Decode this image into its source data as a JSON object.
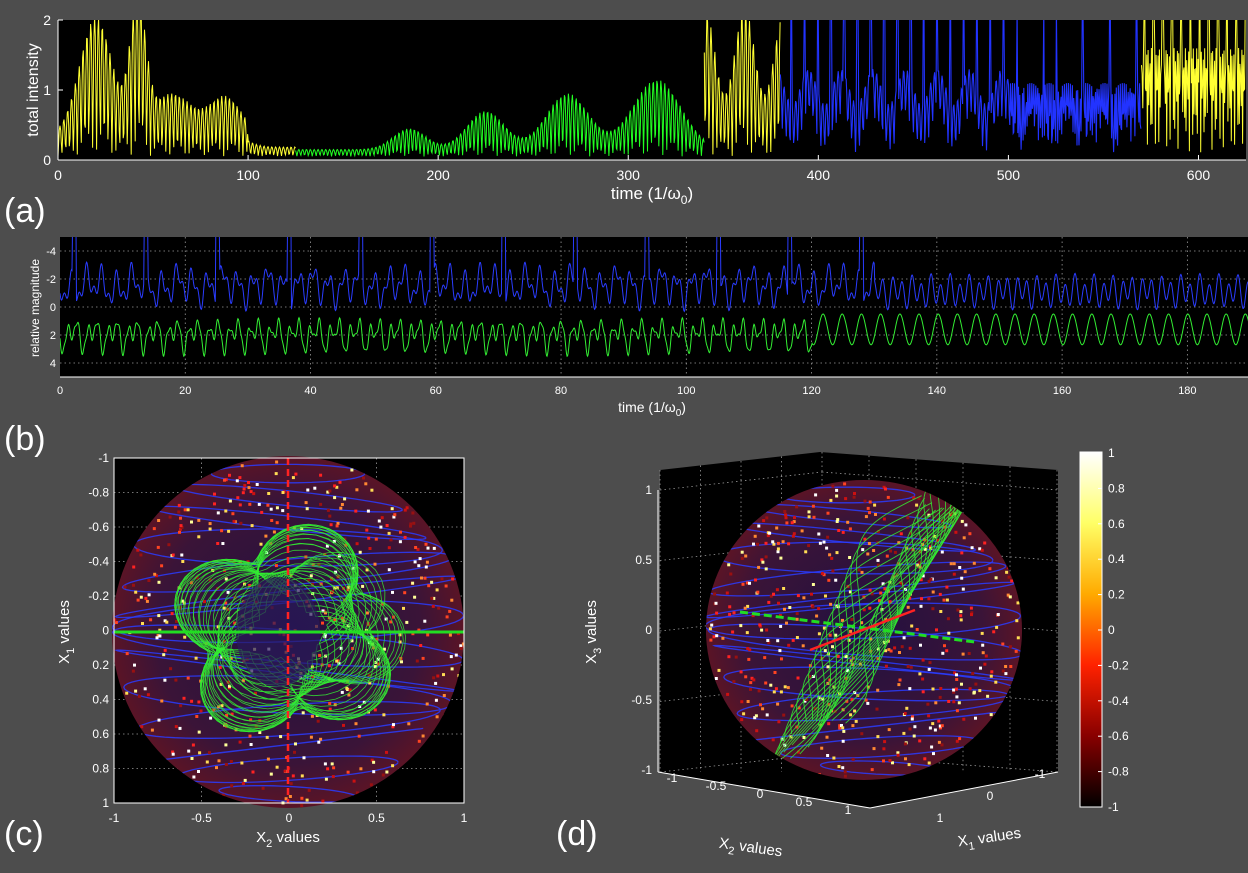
{
  "chart_data": [
    {
      "type": "line",
      "panel_label": "(a)",
      "xlabel": "time (1/ω0)",
      "xlabel_main": "time (1/ω",
      "xlabel_sub": "0",
      "xlabel_end": ")",
      "ylabel": "total intensity",
      "xlim": [
        0,
        625
      ],
      "ylim": [
        0,
        2
      ],
      "x_ticks": [
        "0",
        "100",
        "200",
        "300",
        "400",
        "500",
        "600"
      ],
      "y_ticks": [
        "0",
        "1",
        "2"
      ],
      "grid": false,
      "series": [
        {
          "color": "#ffff33",
          "x_range": [
            0,
            125
          ],
          "envelope_peak_times": [
            20,
            42,
            88
          ],
          "peak_values": [
            2,
            2,
            0.8
          ]
        },
        {
          "color": "#22ff22",
          "x_range": [
            125,
            340
          ],
          "envelope_peak_times": [
            185,
            225,
            268,
            315
          ],
          "peak_values": [
            0.4,
            0.7,
            0.95,
            1.3
          ]
        },
        {
          "color": "#ffff33",
          "x_range": [
            340,
            380
          ],
          "peak_values": [
            2
          ]
        },
        {
          "color": "#2233ff",
          "x_range": [
            380,
            570
          ],
          "peak_values": [
            2
          ]
        },
        {
          "color": "#ffff33",
          "x_range": [
            570,
            625
          ],
          "peak_values": [
            2
          ]
        }
      ]
    },
    {
      "type": "line",
      "panel_label": "(b)",
      "xlabel": "time (1/ω0)",
      "xlabel_main": "time (1/ω",
      "xlabel_sub": "0",
      "xlabel_end": ")",
      "ylabel": "relative magnitude",
      "xlim": [
        0,
        190
      ],
      "ylim": [
        -5,
        5
      ],
      "y_reversed": true,
      "x_ticks": [
        "0",
        "20",
        "40",
        "60",
        "80",
        "100",
        "120",
        "140",
        "160",
        "180"
      ],
      "y_ticks": [
        "-4",
        "-2",
        "0",
        "2",
        "4"
      ],
      "grid": true,
      "series": [
        {
          "color": "#2a3cff",
          "baseline": -1.5,
          "amplitude": 1.3
        },
        {
          "color": "#33ee33",
          "baseline": 2,
          "amplitude": 1.2
        }
      ]
    },
    {
      "type": "scatter",
      "panel_label": "(c)",
      "xlabel": "X2 values",
      "xlabel_main": "X",
      "xlabel_sub": "2",
      "xlabel_end": " values",
      "ylabel": "X1 values",
      "ylabel_main": "X",
      "ylabel_sub": "1",
      "ylabel_end": " values",
      "xlim": [
        -1,
        1
      ],
      "ylim": [
        -1,
        1
      ],
      "y_reversed": true,
      "x_ticks": [
        "-1",
        "-0.5",
        "0",
        "0.5",
        "1"
      ],
      "y_ticks": [
        "-1",
        "-0.8",
        "-0.6",
        "-0.4",
        "-0.2",
        "0",
        "0.2",
        "0.4",
        "0.6",
        "0.8",
        "1"
      ],
      "grid": true,
      "sphere_projection": "top view"
    },
    {
      "type": "scatter",
      "panel_label": "(d)",
      "xlabel": "X1 values",
      "xlabel_main": "X",
      "xlabel_sub": "1",
      "xlabel_end": " values",
      "ylabel": "X2 values",
      "ylabel_main": "X",
      "ylabel_sub": "2",
      "ylabel_end": " values",
      "zlabel": "X3 values",
      "zlabel_main": "X",
      "zlabel_sub": "3",
      "zlabel_end": " values",
      "z_ticks": [
        "1",
        "0.5",
        "0",
        "-0.5",
        "-1"
      ],
      "x2_ticks": [
        "-1",
        "-0.5",
        "0",
        "0.5",
        "1"
      ],
      "x1_ticks": [
        "-1",
        "0",
        "1"
      ],
      "grid": true,
      "sphere_projection": "3D view"
    }
  ],
  "colorbar": {
    "ticks": [
      "1",
      "0.8",
      "0.6",
      "0.4",
      "0.2",
      "0",
      "-0.2",
      "-0.4",
      "-0.6",
      "-0.8",
      "-1"
    ],
    "range": [
      -1,
      1
    ],
    "colormap": "hot"
  },
  "colors": {
    "background": "#4d4d4d",
    "plot_area": "#000000",
    "yellow": "#ffff33",
    "green": "#22ff22",
    "blue": "#2233ff",
    "axis_red": "#ff2222",
    "axis_green": "#22dd22"
  }
}
